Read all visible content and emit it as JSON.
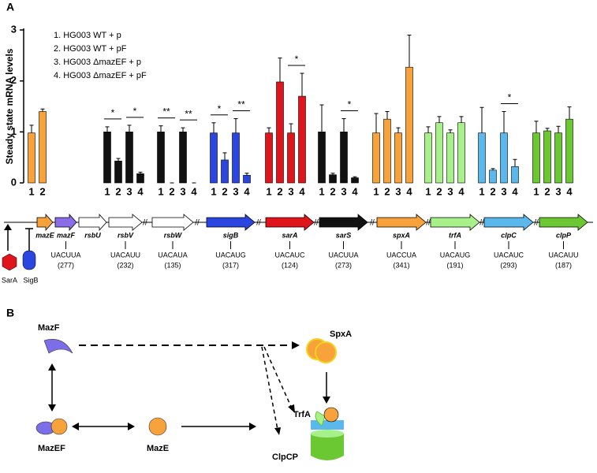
{
  "panel_labels": [
    "A",
    "B"
  ],
  "chart_data": {
    "type": "bar",
    "ylabel": "Steady state mRNA levels",
    "ylim": [
      0,
      3
    ],
    "yticks": [
      0,
      1,
      2,
      3
    ],
    "legend": [
      "1. HG003 WT + p",
      "2. HG003 WT + pF",
      "3. HG003 ΔmazEF + p",
      "4. HG003 ΔmazEF + pF"
    ],
    "groups": [
      {
        "color": "#f7a23a",
        "labels": [
          "1",
          "2"
        ],
        "values": [
          0.98,
          1.4
        ],
        "errors": [
          0.15,
          0.05
        ]
      },
      {
        "color": "#111111",
        "labels": [
          "1",
          "2",
          "3",
          "4"
        ],
        "values": [
          1.0,
          0.43,
          1.0,
          0.18
        ],
        "errors": [
          0.1,
          0.05,
          0.13,
          0.03
        ],
        "significance": [
          "*",
          "*"
        ]
      },
      {
        "color": "#111111",
        "labels": [
          "1",
          "2",
          "3",
          "4"
        ],
        "values": [
          1.0,
          0,
          1.0,
          0
        ],
        "errors": [
          0.12,
          0,
          0.08,
          0
        ],
        "significance": [
          "**",
          "**"
        ]
      },
      {
        "color": "#2a45e0",
        "labels": [
          "1",
          "2",
          "3",
          "4"
        ],
        "values": [
          0.98,
          0.45,
          0.98,
          0.15
        ],
        "errors": [
          0.2,
          0.14,
          0.28,
          0.04
        ],
        "significance": [
          "*",
          "**"
        ]
      },
      {
        "color": "#e0141b",
        "labels": [
          "1",
          "2",
          "3",
          "4"
        ],
        "values": [
          0.98,
          1.98,
          0.98,
          1.7
        ],
        "errors": [
          0.1,
          0.47,
          0.18,
          0.45
        ],
        "significance": [
          null,
          "*"
        ]
      },
      {
        "color": "#111111",
        "labels": [
          "1",
          "2",
          "3",
          "4"
        ],
        "values": [
          1.0,
          0.16,
          1.0,
          0.1
        ],
        "errors": [
          0.53,
          0.03,
          0.26,
          0.02
        ],
        "significance": [
          null,
          "*"
        ]
      },
      {
        "color": "#f7a23a",
        "labels": [
          "1",
          "2",
          "3",
          "4"
        ],
        "values": [
          0.98,
          1.25,
          0.98,
          2.27
        ],
        "errors": [
          0.38,
          0.15,
          0.1,
          0.63
        ]
      },
      {
        "color": "#a8f08a",
        "labels": [
          "1",
          "2",
          "3",
          "4"
        ],
        "values": [
          0.98,
          1.18,
          0.98,
          1.18
        ],
        "errors": [
          0.12,
          0.12,
          0.06,
          0.12
        ]
      },
      {
        "color": "#5ab8ec",
        "labels": [
          "1",
          "2",
          "3",
          "4"
        ],
        "values": [
          0.98,
          0.25,
          0.98,
          0.32
        ],
        "errors": [
          0.5,
          0.03,
          0.42,
          0.14
        ],
        "significance": [
          null,
          "*"
        ]
      },
      {
        "color": "#6cc832",
        "labels": [
          "1",
          "2",
          "3",
          "4"
        ],
        "values": [
          0.98,
          1.02,
          0.98,
          1.25
        ],
        "errors": [
          0.23,
          0.05,
          0.13,
          0.24
        ]
      }
    ]
  },
  "genes": [
    {
      "name": "mazE",
      "color": "#f7a23a"
    },
    {
      "name": "mazF",
      "color": "#8a6ee8",
      "motif": "UACUUA",
      "length": "(277)"
    },
    {
      "name": "rsbU",
      "color": "#ffffff"
    },
    {
      "name": "rsbV",
      "color": "#ffffff",
      "motif": "UACAUU",
      "length": "(232)"
    },
    {
      "name": "rsbW",
      "color": "#ffffff",
      "motif": "UACAUA",
      "length": "(135)"
    },
    {
      "name": "sigB",
      "color": "#2a45e0",
      "motif": "UACAUG",
      "length": "(317)"
    },
    {
      "name": "sarA",
      "color": "#e0141b",
      "motif": "UACAUC",
      "length": "(124)"
    },
    {
      "name": "sarS",
      "color": "#111111",
      "motif": "UACUUA",
      "length": "(273)"
    },
    {
      "name": "spxA",
      "color": "#f7a23a",
      "motif": "UACCUA",
      "length": "(341)"
    },
    {
      "name": "trfA",
      "color": "#a8f08a",
      "motif": "UACAUG",
      "length": "(191)"
    },
    {
      "name": "clpC",
      "color": "#5ab8ec",
      "motif": "UACAUC",
      "length": "(293)"
    },
    {
      "name": "clpP",
      "color": "#6cc832",
      "motif": "UACAUU",
      "length": "(187)"
    }
  ],
  "regulators": [
    "SarA",
    "SigB"
  ],
  "pathway": {
    "mazf": "MazF",
    "spxa": "SpxA",
    "trfa": "TrfA",
    "mazef": "MazEF",
    "maze": "MazE",
    "clpcp": "ClpCP"
  }
}
